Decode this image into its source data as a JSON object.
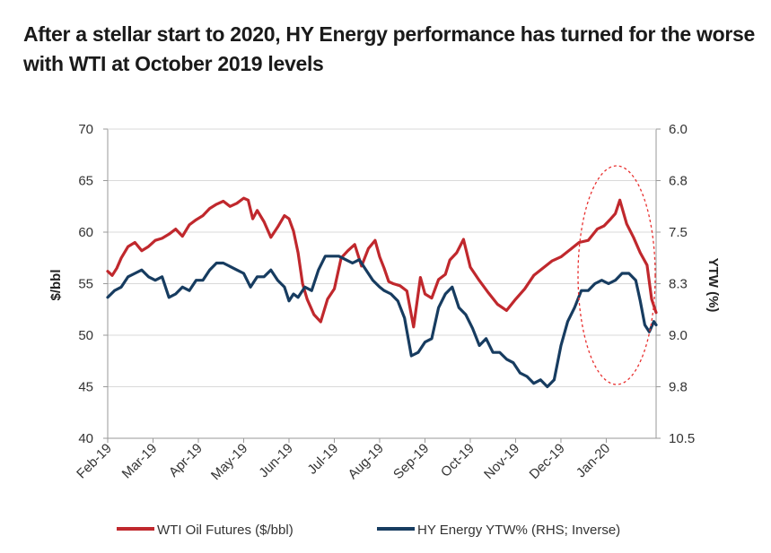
{
  "title": "After a stellar start to 2020, HY Energy performance has turned for the worse with WTI at October 2019 levels",
  "chart_data": {
    "type": "line",
    "title": "After a stellar start to 2020, HY Energy performance has turned for the worse with WTI at October 2019 levels",
    "xlabel": "",
    "ylabel": "$/bbl",
    "y2label": "YTW (%)",
    "ylim": [
      40,
      70
    ],
    "y2lim": [
      6.0,
      10.5
    ],
    "y2_inverted": true,
    "yticks": [
      "70",
      "65",
      "60",
      "55",
      "50",
      "45",
      "40"
    ],
    "y2ticks": [
      "6.0",
      "6.8",
      "7.5",
      "8.3",
      "9.0",
      "9.8",
      "10.5"
    ],
    "x_tick_labels": [
      "Feb-19",
      "Mar-19",
      "Apr-19",
      "May-19",
      "Jun-19",
      "Jul-19",
      "Aug-19",
      "Sep-19",
      "Oct-19",
      "Nov-19",
      "Dec-19",
      "Jan-20"
    ],
    "x_range_months": [
      0,
      12.1
    ],
    "grid": "horizontal",
    "legend_position": "bottom",
    "highlight": "dashed ellipse around Jan-20",
    "series": [
      {
        "name": "WTI Oil Futures ($/bbl)",
        "axis": "left",
        "color": "#c0282d",
        "x": [
          0,
          0.1,
          0.2,
          0.3,
          0.45,
          0.6,
          0.75,
          0.9,
          1.05,
          1.2,
          1.35,
          1.5,
          1.65,
          1.8,
          1.95,
          2.1,
          2.25,
          2.4,
          2.55,
          2.7,
          2.85,
          3.0,
          3.1,
          3.2,
          3.3,
          3.45,
          3.6,
          3.75,
          3.9,
          4.0,
          4.1,
          4.2,
          4.3,
          4.4,
          4.55,
          4.7,
          4.85,
          5.0,
          5.15,
          5.3,
          5.45,
          5.6,
          5.75,
          5.9,
          6.0,
          6.1,
          6.2,
          6.3,
          6.45,
          6.6,
          6.75,
          6.9,
          7.0,
          7.15,
          7.3,
          7.45,
          7.55,
          7.7,
          7.85,
          8.0,
          8.2,
          8.4,
          8.6,
          8.8,
          9.0,
          9.2,
          9.4,
          9.6,
          9.8,
          10.0,
          10.2,
          10.4,
          10.6,
          10.8,
          10.95,
          11.1,
          11.2,
          11.3,
          11.45,
          11.6,
          11.75,
          11.9,
          12.0,
          12.1
        ],
        "values": [
          56.2,
          55.8,
          56.5,
          57.5,
          58.6,
          59.0,
          58.2,
          58.6,
          59.2,
          59.4,
          59.8,
          60.3,
          59.6,
          60.7,
          61.2,
          61.6,
          62.3,
          62.7,
          63.0,
          62.5,
          62.8,
          63.3,
          63.1,
          61.3,
          62.1,
          61.0,
          59.5,
          60.5,
          61.6,
          61.3,
          60.1,
          58.0,
          55.0,
          53.5,
          52.0,
          51.3,
          53.5,
          54.5,
          57.5,
          58.2,
          58.8,
          56.7,
          58.4,
          59.2,
          57.6,
          56.5,
          55.2,
          55.0,
          54.8,
          54.3,
          50.8,
          55.6,
          54.0,
          53.6,
          55.4,
          55.9,
          57.3,
          58.0,
          59.3,
          56.6,
          55.3,
          54.1,
          53.0,
          52.4,
          53.5,
          54.5,
          55.8,
          56.5,
          57.2,
          57.6,
          58.3,
          59.0,
          59.2,
          60.3,
          60.6,
          61.3,
          61.8,
          63.1,
          60.8,
          59.5,
          58.0,
          56.8,
          53.5,
          52.2
        ]
      },
      {
        "name": "HY Energy YTW% (RHS; Inverse)",
        "axis": "right",
        "color": "#173c60",
        "x": [
          0,
          0.15,
          0.3,
          0.45,
          0.6,
          0.75,
          0.9,
          1.05,
          1.2,
          1.35,
          1.5,
          1.65,
          1.8,
          1.95,
          2.1,
          2.25,
          2.4,
          2.55,
          2.7,
          2.85,
          3.0,
          3.15,
          3.3,
          3.45,
          3.6,
          3.75,
          3.9,
          4.0,
          4.1,
          4.2,
          4.35,
          4.5,
          4.65,
          4.8,
          4.95,
          5.1,
          5.25,
          5.4,
          5.55,
          5.7,
          5.85,
          6.0,
          6.1,
          6.25,
          6.4,
          6.55,
          6.7,
          6.85,
          7.0,
          7.15,
          7.3,
          7.45,
          7.6,
          7.75,
          7.9,
          8.05,
          8.2,
          8.35,
          8.5,
          8.65,
          8.8,
          8.95,
          9.1,
          9.25,
          9.4,
          9.55,
          9.7,
          9.85,
          10.0,
          10.15,
          10.3,
          10.45,
          10.6,
          10.75,
          10.9,
          11.05,
          11.2,
          11.35,
          11.5,
          11.65,
          11.75,
          11.85,
          11.95,
          12.05,
          12.1
        ],
        "values": [
          8.45,
          8.35,
          8.3,
          8.15,
          8.1,
          8.05,
          8.15,
          8.2,
          8.15,
          8.45,
          8.4,
          8.3,
          8.35,
          8.2,
          8.2,
          8.05,
          7.95,
          7.95,
          8.0,
          8.05,
          8.1,
          8.3,
          8.15,
          8.15,
          8.05,
          8.2,
          8.3,
          8.5,
          8.4,
          8.45,
          8.3,
          8.35,
          8.05,
          7.85,
          7.85,
          7.85,
          7.9,
          7.95,
          7.9,
          8.05,
          8.2,
          8.3,
          8.35,
          8.4,
          8.5,
          8.75,
          9.3,
          9.25,
          9.1,
          9.05,
          8.6,
          8.4,
          8.3,
          8.6,
          8.7,
          8.9,
          9.15,
          9.05,
          9.25,
          9.25,
          9.35,
          9.4,
          9.55,
          9.6,
          9.7,
          9.65,
          9.75,
          9.65,
          9.15,
          8.8,
          8.6,
          8.35,
          8.35,
          8.25,
          8.2,
          8.25,
          8.2,
          8.1,
          8.1,
          8.2,
          8.5,
          8.85,
          8.95,
          8.8,
          8.85
        ]
      }
    ]
  },
  "legend": {
    "wti_label": "WTI Oil Futures ($/bbl)",
    "hy_label": "HY Energy YTW% (RHS; Inverse)"
  },
  "colors": {
    "wti": "#c0282d",
    "hy": "#173c60",
    "ellipse": "#e8302f",
    "grid": "#d9d9d9",
    "axis": "#9a9a9a"
  }
}
